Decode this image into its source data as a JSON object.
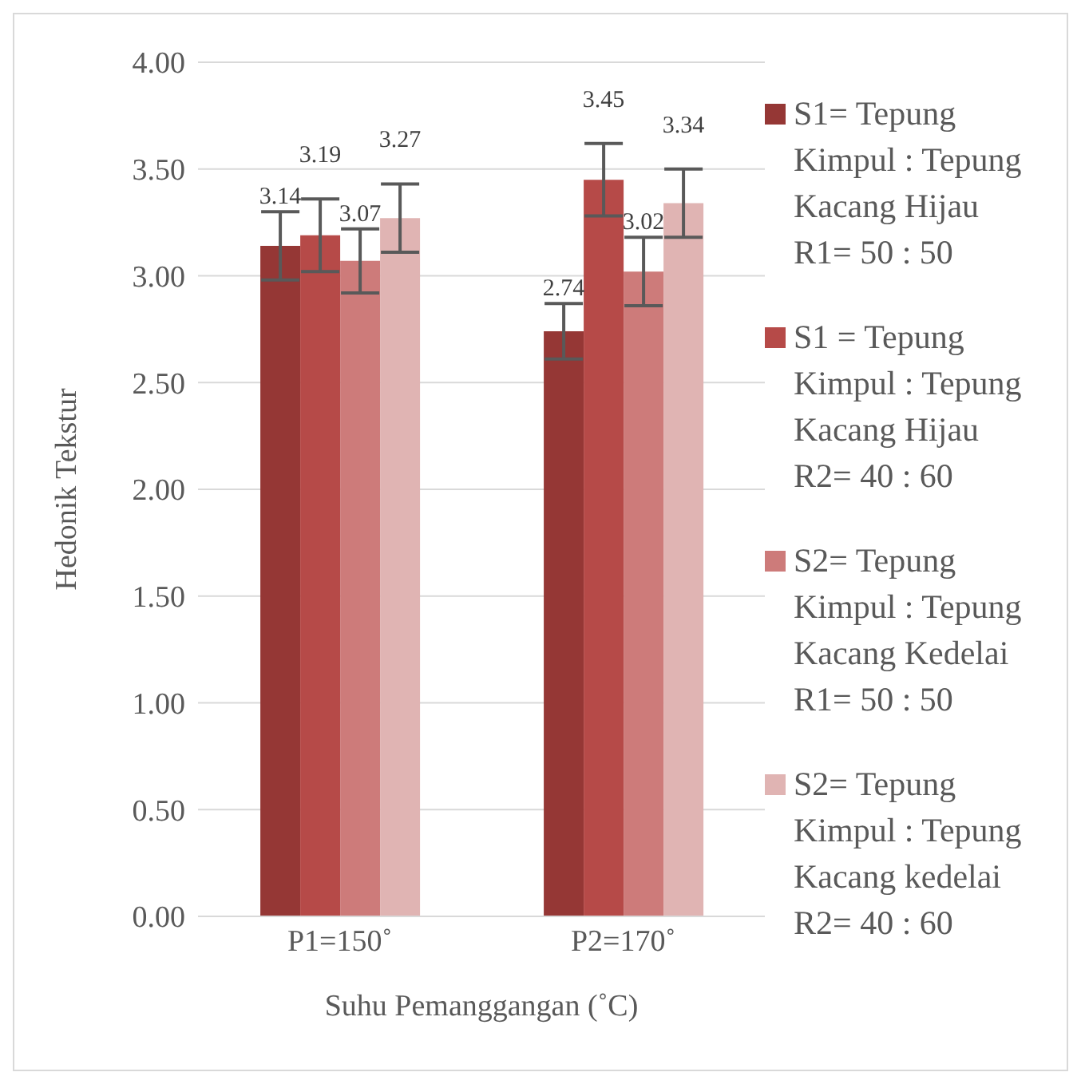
{
  "chart_data": {
    "type": "bar",
    "xlabel": "Suhu Pemanggangan (˚C)",
    "ylabel": "Hedonik Tekstur",
    "categories": [
      "P1=150˚",
      "P2=170˚"
    ],
    "series": [
      {
        "name": "S1= Tepung Kimpul : Tepung Kacang Hijau R1= 50 : 50",
        "color": "#953735",
        "values": [
          3.14,
          2.74
        ],
        "errors": [
          0.16,
          0.13
        ]
      },
      {
        "name": "S1 = Tepung Kimpul : Tepung Kacang Hijau R2= 40 : 60",
        "color": "#b64a48",
        "values": [
          3.19,
          3.45
        ],
        "errors": [
          0.17,
          0.17
        ]
      },
      {
        "name": "S2= Tepung Kimpul : Tepung Kacang Kedelai R1= 50 : 50",
        "color": "#cd7b7a",
        "values": [
          3.07,
          3.02
        ],
        "errors": [
          0.15,
          0.16
        ]
      },
      {
        "name": "S2= Tepung Kimpul : Tepung Kacang kedelai R2= 40 : 60",
        "color": "#e0b4b3",
        "values": [
          3.27,
          3.34
        ],
        "errors": [
          0.16,
          0.16
        ]
      }
    ],
    "ylim": [
      0,
      4
    ],
    "yticks": [
      {
        "value": 0,
        "label": "0.00"
      },
      {
        "value": 0.5,
        "label": "0.50"
      },
      {
        "value": 1,
        "label": "1.00"
      },
      {
        "value": 1.5,
        "label": "1.50"
      },
      {
        "value": 2,
        "label": "2.00"
      },
      {
        "value": 2.5,
        "label": "2.50"
      },
      {
        "value": 3,
        "label": "3.00"
      },
      {
        "value": 3.5,
        "label": "3.50"
      },
      {
        "value": 4,
        "label": "4.00"
      }
    ],
    "grid": "y",
    "legend": "right",
    "data_labels": true
  }
}
